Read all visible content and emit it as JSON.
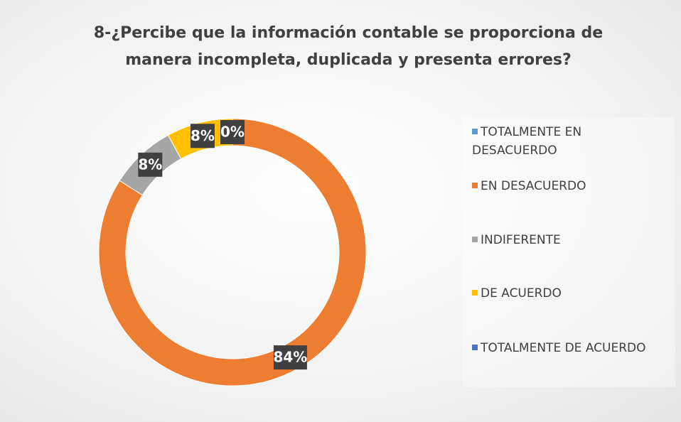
{
  "chart_data": {
    "type": "donut",
    "title": "8-¿Percibe que la información contable se proporciona de manera incompleta, duplicada y presenta errores?",
    "categories": [
      "TOTALMENTE EN DESACUERDO",
      "EN DESACUERDO",
      "INDIFERENTE",
      "DE ACUERDO",
      "TOTALMENTE DE ACUERDO"
    ],
    "values": [
      0,
      84,
      8,
      8,
      0
    ],
    "value_labels": [
      "0%",
      "84%",
      "8%",
      "8%",
      "0%"
    ],
    "colors": [
      "#5b9bd5",
      "#ed7d31",
      "#a5a5a5",
      "#ffc000",
      "#4472c4"
    ],
    "legend": "right"
  }
}
